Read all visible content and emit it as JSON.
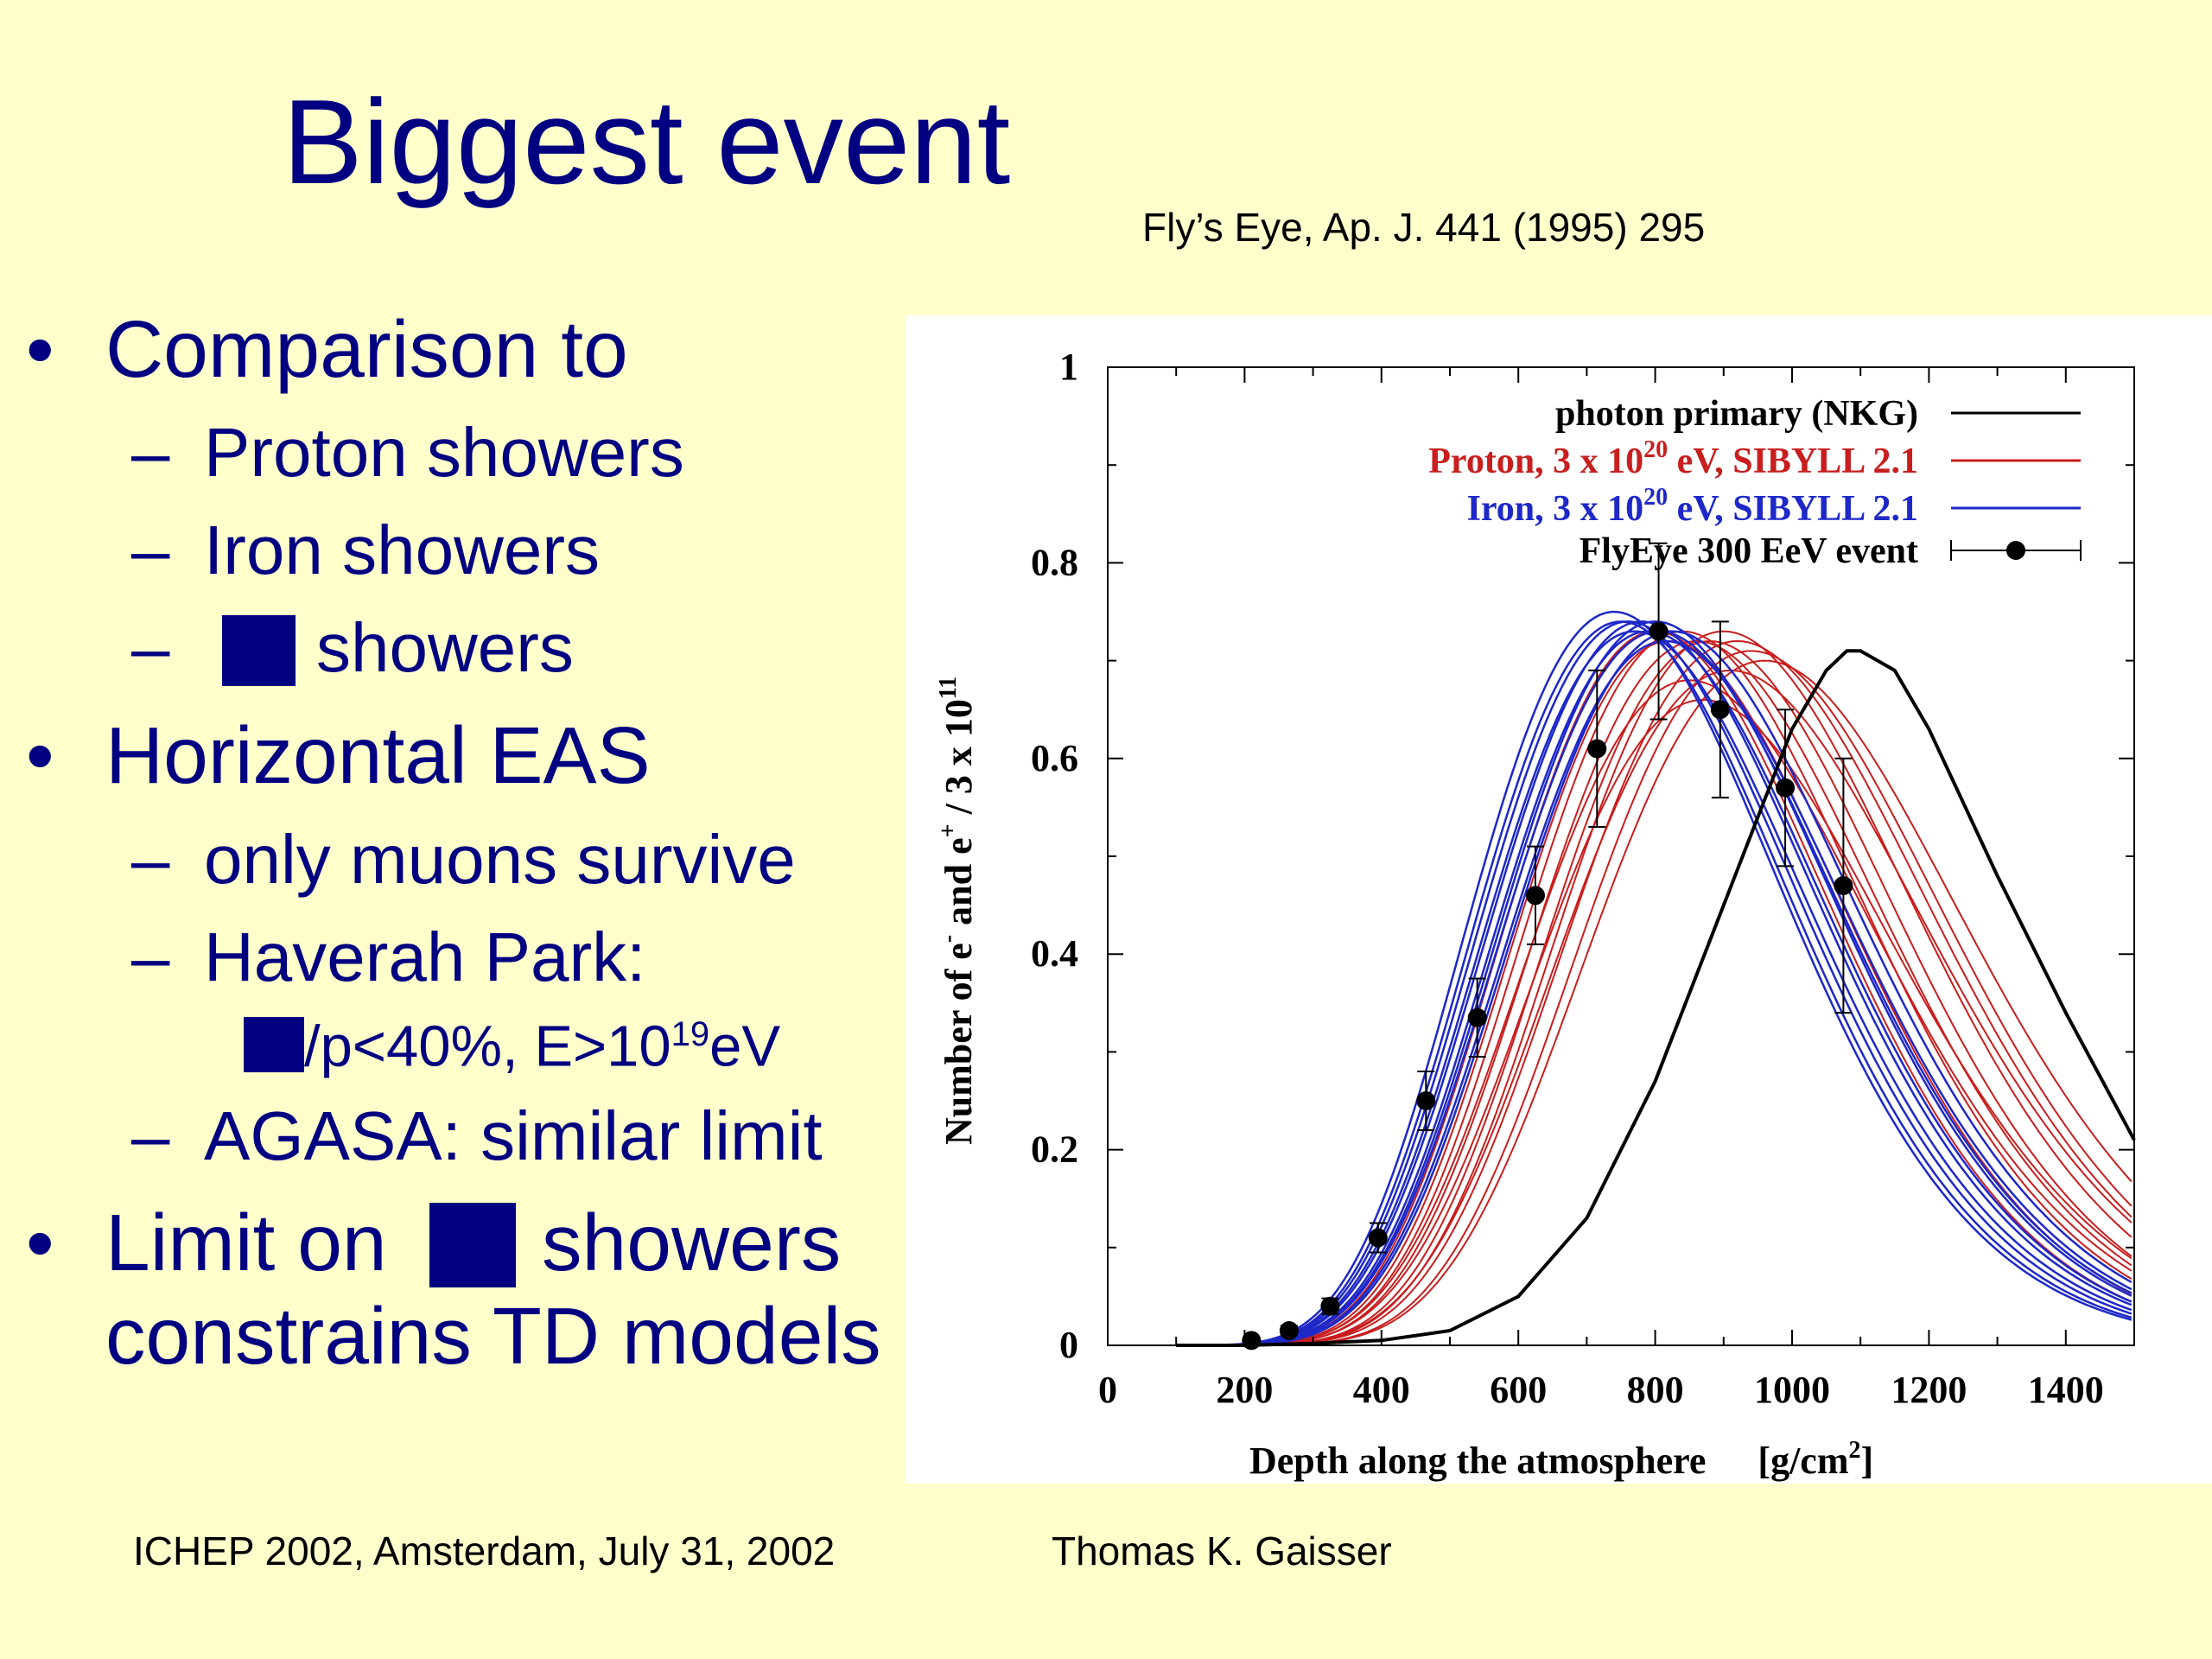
{
  "slide": {
    "title": "Biggest event",
    "citation": "Fly’s Eye, Ap. J. 441 (1995) 295",
    "footer_left": "ICHEP 2002, Amsterdam, July 31, 2002",
    "footer_right": "Thomas K. Gaisser"
  },
  "bullets": {
    "b1": "Comparison to",
    "b1_1": "Proton showers",
    "b1_2": "Iron showers",
    "b1_3": "showers",
    "b2": "Horizontal EAS",
    "b2_1": "only muons survive",
    "b2_2": "Haverah Park:",
    "b2_2a_pre": "/p<40%, E>10",
    "b2_2a_sup": "19",
    "b2_2a_post": "eV",
    "b2_3": "AGASA: similar limit",
    "b3_pre": "Limit on",
    "b3_post": "showers",
    "b3_line2": "constrains TD models",
    "bullet_glyph": "•",
    "dash_glyph": "–"
  },
  "colors": {
    "background": "#FFFFCC",
    "text_navy": "#000080",
    "photon": "#000000",
    "proton": "#C81E1E",
    "iron": "#1E28C8",
    "data": "#000000"
  },
  "chart_data": {
    "type": "line",
    "xlabel": "Depth along the atmosphere",
    "xlabel_unit": "[g/cm",
    "xlabel_unit_sup": "2",
    "xlabel_unit_close": "]",
    "ylabel": {
      "main": "Number of e",
      "sup1": "-",
      "mid": " and e",
      "sup2": "+",
      "tail": " / 3 x 10",
      "sup3": "11"
    },
    "xlim": [
      0,
      1500
    ],
    "ylim": [
      0,
      1
    ],
    "xticks": [
      0,
      200,
      400,
      600,
      800,
      1000,
      1200,
      1400
    ],
    "yticks": [
      0,
      0.2,
      0.4,
      0.6,
      0.8,
      1
    ],
    "ytick_labels": [
      "0",
      "0.2",
      "0.4",
      "0.6",
      "0.8",
      "1"
    ],
    "legend_position": "top-right",
    "legend": [
      {
        "pre": "photon primary (NKG)",
        "sup": "",
        "post": "",
        "color_key": "photon",
        "style": "line"
      },
      {
        "pre": "Proton, 3 x 10",
        "sup": "20",
        "post": " eV, SIBYLL 2.1",
        "color_key": "proton",
        "style": "line"
      },
      {
        "pre": "Iron, 3 x 10",
        "sup": "20",
        "post": " eV, SIBYLL 2.1",
        "color_key": "iron",
        "style": "line"
      },
      {
        "pre": "FlyEye 300 EeV event",
        "sup": "",
        "post": "",
        "color_key": "data",
        "style": "points"
      }
    ],
    "photon_curve": {
      "x": [
        100,
        200,
        300,
        400,
        500,
        600,
        700,
        800,
        900,
        1000,
        1050,
        1080,
        1100,
        1150,
        1200,
        1300,
        1400,
        1500
      ],
      "y": [
        0,
        0,
        0.002,
        0.005,
        0.015,
        0.05,
        0.13,
        0.27,
        0.45,
        0.63,
        0.69,
        0.71,
        0.71,
        0.69,
        0.63,
        0.48,
        0.34,
        0.21
      ]
    },
    "proton_curves": [
      {
        "xmax": 800,
        "nmax": 0.73,
        "w": 1
      },
      {
        "xmax": 820,
        "nmax": 0.72,
        "w": 1
      },
      {
        "xmax": 840,
        "nmax": 0.73,
        "w": 1.03
      },
      {
        "xmax": 860,
        "nmax": 0.72,
        "w": 1.05
      },
      {
        "xmax": 880,
        "nmax": 0.72,
        "w": 1.03
      },
      {
        "xmax": 900,
        "nmax": 0.73,
        "w": 1.05
      },
      {
        "xmax": 920,
        "nmax": 0.72,
        "w": 1.08
      },
      {
        "xmax": 940,
        "nmax": 0.71,
        "w": 1.06
      },
      {
        "xmax": 960,
        "nmax": 0.7,
        "w": 1.1
      },
      {
        "xmax": 850,
        "nmax": 0.68,
        "w": 1.08
      },
      {
        "xmax": 870,
        "nmax": 0.66,
        "w": 1.1
      },
      {
        "xmax": 910,
        "nmax": 0.69,
        "w": 1.12
      }
    ],
    "iron_curves": [
      {
        "xmax": 740,
        "nmax": 0.75,
        "w": 1
      },
      {
        "xmax": 750,
        "nmax": 0.74,
        "w": 1
      },
      {
        "xmax": 760,
        "nmax": 0.74,
        "w": 1.01
      },
      {
        "xmax": 770,
        "nmax": 0.73,
        "w": 1.02
      },
      {
        "xmax": 780,
        "nmax": 0.74,
        "w": 1.03
      },
      {
        "xmax": 790,
        "nmax": 0.73,
        "w": 1.03
      },
      {
        "xmax": 800,
        "nmax": 0.74,
        "w": 1.04
      },
      {
        "xmax": 805,
        "nmax": 0.73,
        "w": 1.05
      },
      {
        "xmax": 815,
        "nmax": 0.72,
        "w": 1.05
      },
      {
        "xmax": 825,
        "nmax": 0.73,
        "w": 1.06
      }
    ],
    "data_points": [
      {
        "x": 210,
        "y": 0.005,
        "err": 0.003
      },
      {
        "x": 265,
        "y": 0.015,
        "err": 0.005
      },
      {
        "x": 325,
        "y": 0.04,
        "err": 0.008
      },
      {
        "x": 395,
        "y": 0.11,
        "err": 0.015
      },
      {
        "x": 465,
        "y": 0.25,
        "err": 0.03
      },
      {
        "x": 540,
        "y": 0.335,
        "err": 0.04
      },
      {
        "x": 625,
        "y": 0.46,
        "err": 0.05
      },
      {
        "x": 715,
        "y": 0.61,
        "err": 0.08
      },
      {
        "x": 805,
        "y": 0.73,
        "err": 0.09
      },
      {
        "x": 895,
        "y": 0.65,
        "err": 0.09
      },
      {
        "x": 990,
        "y": 0.57,
        "err": 0.08
      },
      {
        "x": 1075,
        "y": 0.47,
        "err": 0.13
      }
    ]
  }
}
